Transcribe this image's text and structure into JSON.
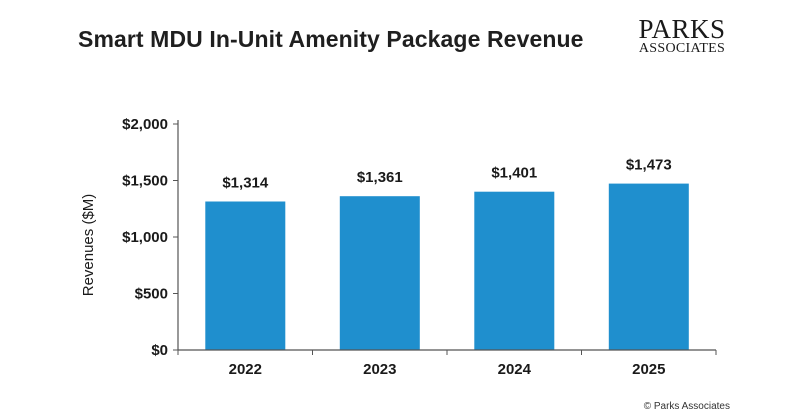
{
  "header": {
    "title": "Smart MDU In-Unit Amenity Package Revenue"
  },
  "logo": {
    "line1": "PARKS",
    "line2": "ASSOCIATES"
  },
  "footer": {
    "copyright": "© Parks Associates"
  },
  "colors": {
    "bar": "#1f8fce",
    "axis": "#555555"
  },
  "chart_data": {
    "type": "bar",
    "title": "Smart MDU In-Unit Amenity Package Revenue",
    "xlabel": "",
    "ylabel": "Revenues ($M)",
    "categories": [
      "2022",
      "2023",
      "2024",
      "2025"
    ],
    "values": [
      1314,
      1361,
      1401,
      1473
    ],
    "value_labels": [
      "$1,314",
      "$1,361",
      "$1,401",
      "$1,473"
    ],
    "yticks": [
      0,
      500,
      1000,
      1500,
      2000
    ],
    "ytick_labels": [
      "$0",
      "$500",
      "$1,000",
      "$1,500",
      "$2,000"
    ],
    "ylim": [
      0,
      2000
    ],
    "grid": false,
    "legend": "none"
  }
}
